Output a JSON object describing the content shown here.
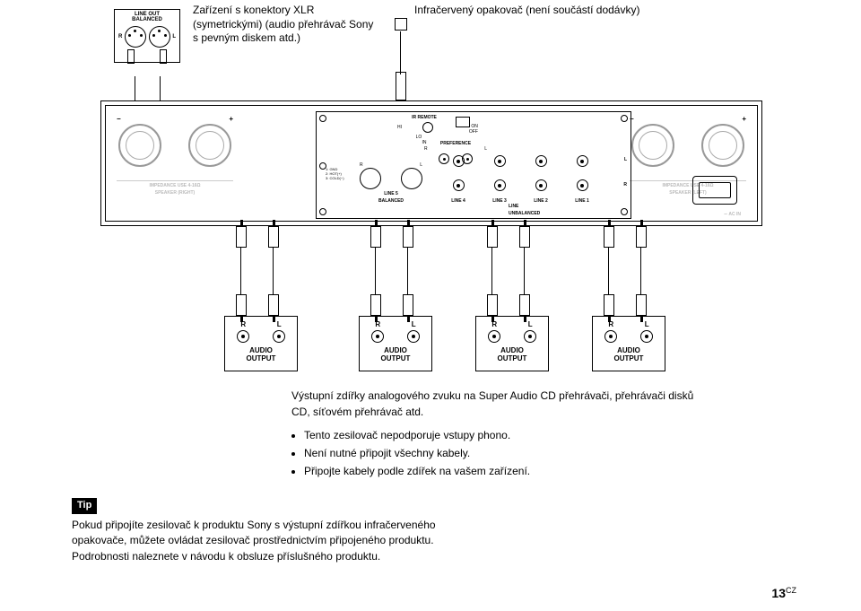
{
  "xlr_block": {
    "line1": "LINE OUT",
    "line2": "BALANCED",
    "r": "R",
    "l": "L"
  },
  "top_left_text": "Zařízení s konektory XLR (symetrickými) (audio přehrávač Sony s pevným diskem atd.)",
  "top_right_text": "Infračervený opakovač (není součástí dodávky)",
  "panel": {
    "ir_remote": "IR REMOTE",
    "in": "IN",
    "on": "ON",
    "off": "OFF",
    "hi": "HI",
    "lo": "LO",
    "preference": "PREFERENCE",
    "r": "R",
    "l": "L",
    "line5": "LINE 5",
    "balanced": "BALANCED",
    "line4": "LINE 4",
    "line3": "LINE 3",
    "line2": "LINE 2",
    "line1": "LINE 1",
    "line_group": "LINE",
    "unbalanced": "UNBALANCED",
    "pins1": "1: GND",
    "pins2": "2: HOT(+)",
    "pins3": "3: COLD(−)",
    "speaker_right_imp": "IMPEDANCE USE 4-16Ω",
    "speaker_right": "SPEAKER (RIGHT)",
    "speaker_left_imp": "IMPEDANCE USE 4-16Ω",
    "speaker_left": "SPEAKER (LEFT)",
    "ac_in": "AC IN",
    "ac_sym": "∼"
  },
  "audio_boxes": {
    "r": "R",
    "l": "L",
    "audio": "AUDIO",
    "output": "OUTPUT"
  },
  "body": {
    "p": "Výstupní zdířky analogového zvuku na Super Audio CD přehrávači, přehrávači disků CD, síťovém přehrávač atd.",
    "b1": "Tento zesilovač nepodporuje vstupy phono.",
    "b2": "Není nutné připojit všechny kabely.",
    "b3": "Připojte kabely podle zdířek na vašem zařízení."
  },
  "tip": {
    "tag": "Tip",
    "text": "Pokud připojíte zesilovač k produktu Sony s výstupní zdířkou infračerveného opakovače, můžete ovládat zesilovač prostřednictvím připojeného produktu. Podrobnosti naleznete v návodu k obsluze příslušného produktu."
  },
  "page_number": "13",
  "page_cz": "CZ",
  "layout": {
    "audio_box_left_positions": [
      250,
      400,
      530,
      660
    ],
    "rca_col_positions": [
      0,
      46,
      92,
      138
    ],
    "rca_labels": [
      "line4",
      "line3",
      "line2",
      "line1"
    ]
  }
}
